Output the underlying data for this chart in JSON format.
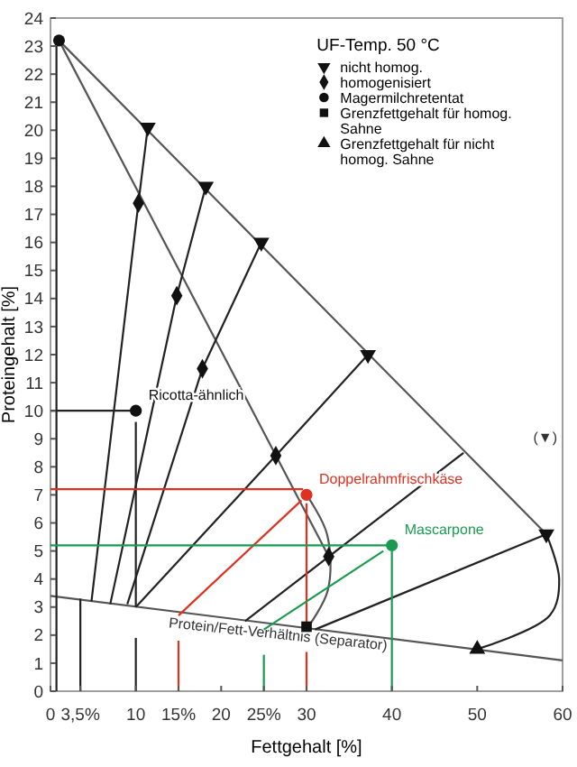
{
  "chart_data": {
    "type": "scatter",
    "xlabel": "Fettgehalt [%]",
    "ylabel": "Proteingehalt [%]",
    "legend_title": "UF-Temp. 50 °C",
    "legend": "top right",
    "grid": false,
    "xlim": [
      0,
      60
    ],
    "ylim": [
      0,
      24
    ],
    "xticks": [
      0,
      {
        "value": 3.5,
        "label": "3,5%"
      },
      10,
      {
        "value": 15,
        "label": "15%"
      },
      20,
      {
        "value": 25,
        "label": "25%"
      },
      30,
      40,
      50,
      60
    ],
    "yticks": [
      0,
      1,
      2,
      3,
      4,
      5,
      6,
      7,
      8,
      9,
      10,
      11,
      12,
      13,
      14,
      15,
      16,
      17,
      18,
      19,
      20,
      21,
      22,
      23,
      24
    ],
    "series": [
      {
        "type": "line",
        "color": "#555555",
        "x": [
          1,
          58.1
        ],
        "values": [
          23.2,
          5.6
        ]
      },
      {
        "type": "line",
        "color": "#555555",
        "x": [
          1,
          32.6
        ],
        "values": [
          23.2,
          4.8
        ]
      },
      {
        "type": "line",
        "color": "#555555",
        "x": [
          0,
          60
        ],
        "values": [
          3.4,
          1.1
        ]
      },
      {
        "type": "line",
        "color": "#222222",
        "x": [
          0.7,
          0.7
        ],
        "values": [
          0,
          23
        ]
      },
      {
        "type": "line",
        "color": "#222222",
        "x": [
          3.5,
          3.5
        ],
        "values": [
          3.3,
          0
        ]
      },
      {
        "type": "line",
        "color": "#222222",
        "x": [
          4.8,
          10.3
        ],
        "values": [
          3.2,
          17.4
        ]
      },
      {
        "type": "line",
        "color": "#222222",
        "x": [
          10.3,
          11.4
        ],
        "values": [
          17.4,
          20.1
        ]
      },
      {
        "type": "line",
        "color": "#222222",
        "x": [
          7,
          14.8
        ],
        "values": [
          3.1,
          14.1
        ]
      },
      {
        "type": "line",
        "color": "#222222",
        "x": [
          14.8,
          18.2
        ],
        "values": [
          14.1,
          18
        ]
      },
      {
        "type": "line",
        "color": "#222222",
        "x": [
          9,
          17.8
        ],
        "values": [
          3.1,
          11.5
        ]
      },
      {
        "type": "line",
        "color": "#222222",
        "x": [
          17.8,
          24.7
        ],
        "values": [
          11.5,
          16
        ]
      },
      {
        "type": "line",
        "color": "#222222",
        "x": [
          10,
          26.4
        ],
        "values": [
          3,
          8.4
        ]
      },
      {
        "type": "line",
        "color": "#222222",
        "x": [
          26.4,
          37.2
        ],
        "values": [
          8.4,
          12
        ]
      },
      {
        "type": "line",
        "color": "#222222",
        "x": [
          22.8,
          32.6
        ],
        "values": [
          2.5,
          4.8
        ]
      },
      {
        "type": "line",
        "color": "#222222",
        "x": [
          32.6,
          48.4
        ],
        "values": [
          4.8,
          8.5
        ]
      },
      {
        "type": "line",
        "color": "#222222",
        "x": [
          31,
          58.1
        ],
        "values": [
          2.2,
          5.6
        ]
      },
      {
        "type": "line",
        "color": "#222222",
        "x": [
          0,
          10
        ],
        "values": [
          10,
          10
        ]
      },
      {
        "type": "line",
        "color": "#222222",
        "x": [
          10,
          10
        ],
        "values": [
          3,
          9.6
        ]
      },
      {
        "type": "line",
        "color": "#222222",
        "x": [
          10,
          10
        ],
        "values": [
          1.9,
          0
        ]
      },
      {
        "type": "line",
        "color": "#222222",
        "x": [
          58.1,
          59.6,
          58.5,
          50
        ],
        "values": [
          5.6,
          4,
          2.7,
          1.5
        ]
      },
      {
        "type": "line",
        "color": "#555555",
        "x": [
          30,
          32.4,
          32.5,
          30.2
        ],
        "values": [
          7,
          5.6,
          3.6,
          2.3
        ]
      },
      {
        "type": "line",
        "color": "#e03020",
        "x": [
          0,
          29.6
        ],
        "values": [
          7.2,
          7.2
        ]
      },
      {
        "type": "line",
        "color": "#e03020",
        "x": [
          30,
          30
        ],
        "values": [
          2.3,
          6.7
        ]
      },
      {
        "type": "line",
        "color": "#e03020",
        "x": [
          29.4,
          15
        ],
        "values": [
          6.8,
          2.7
        ]
      },
      {
        "type": "line",
        "color": "#e03020",
        "x": [
          15,
          15
        ],
        "values": [
          1.8,
          0
        ]
      },
      {
        "type": "line",
        "color": "#e03020",
        "x": [
          30,
          30
        ],
        "values": [
          1.4,
          0
        ]
      },
      {
        "type": "line",
        "color": "#1a9a50",
        "x": [
          0,
          39.5
        ],
        "values": [
          5.2,
          5.2
        ]
      },
      {
        "type": "line",
        "color": "#1a9a50",
        "x": [
          40,
          40
        ],
        "values": [
          0,
          5
        ]
      },
      {
        "type": "line",
        "color": "#1a9a50",
        "x": [
          39,
          25
        ],
        "values": [
          5,
          2.2
        ]
      },
      {
        "type": "line",
        "color": "#1a9a50",
        "x": [
          25,
          25
        ],
        "values": [
          1.3,
          0
        ]
      },
      {
        "name": "nicht homog.",
        "marker": "triangle-down",
        "color": "#111111",
        "x": [
          11.4,
          18.2,
          24.7,
          37.2,
          58.1
        ],
        "values": [
          20.1,
          18,
          16,
          12,
          5.6
        ]
      },
      {
        "name": "homogenisiert",
        "marker": "diamond",
        "color": "#111111",
        "x": [
          10.3,
          14.8,
          17.8,
          26.4,
          32.6
        ],
        "values": [
          17.4,
          14.1,
          11.5,
          8.4,
          4.8
        ]
      },
      {
        "name": "Magermilchretentat",
        "marker": "circle",
        "color": "#111111",
        "x": [
          1
        ],
        "values": [
          23.2
        ]
      },
      {
        "name": "Grenzfettgehalt für homog. Sahne",
        "marker": "square",
        "color": "#111111",
        "x": [
          30
        ],
        "values": [
          2.3
        ]
      },
      {
        "name": "Grenzfettgehalt für nicht homog. Sahne",
        "marker": "triangle",
        "color": "#111111",
        "x": [
          50
        ],
        "values": [
          1.5
        ]
      },
      {
        "marker": "circle",
        "color": "#111111",
        "x": [
          10
        ],
        "values": [
          10
        ]
      },
      {
        "marker": "circle",
        "color": "#e03020",
        "x": [
          30
        ],
        "values": [
          7
        ]
      },
      {
        "marker": "circle",
        "color": "#1a9a50",
        "x": [
          40
        ],
        "values": [
          5.2
        ]
      }
    ],
    "annotations": [
      {
        "text": "Ricotta-ähnlich",
        "x": 10,
        "y": 10
      },
      {
        "text": "Doppelrahmfrischkäse",
        "x": 30,
        "y": 7
      },
      {
        "text": "Mascarpone",
        "x": 40,
        "y": 5.2
      },
      "(▼)",
      "Protein/Fett-Verhältnis (Separator)"
    ]
  }
}
